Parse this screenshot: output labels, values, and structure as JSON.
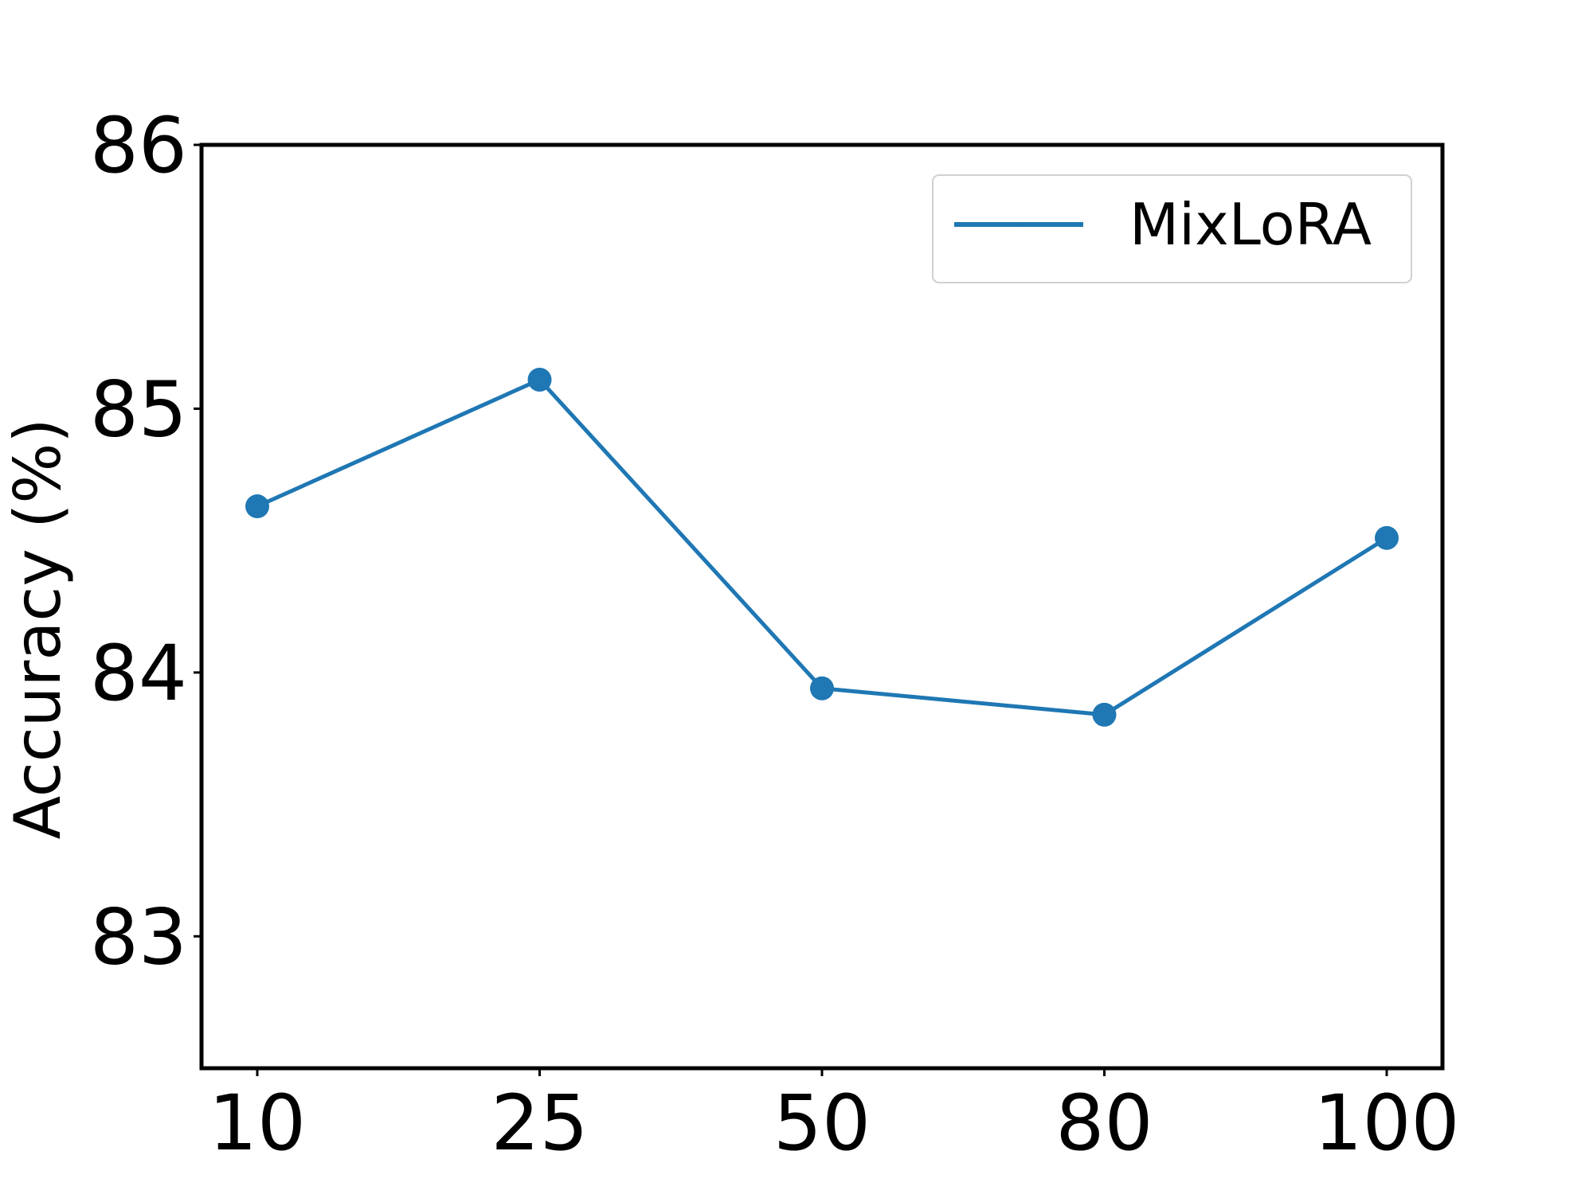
{
  "chart_data": {
    "type": "line",
    "title": "",
    "xlabel": "",
    "ylabel": "Accuracy (%)",
    "categories": [
      "10",
      "25",
      "50",
      "80",
      "100"
    ],
    "series": [
      {
        "name": "MixLoRA",
        "color": "#1f77b4",
        "marker": "circle",
        "values": [
          84.63,
          85.11,
          83.94,
          83.84,
          84.51
        ]
      }
    ],
    "ylim": [
      82.5,
      86
    ],
    "yticks": [
      83,
      84,
      85,
      86
    ],
    "ytick_labels": [
      "83",
      "84",
      "85",
      "86"
    ],
    "grid": false,
    "legend_position": "top-right"
  }
}
